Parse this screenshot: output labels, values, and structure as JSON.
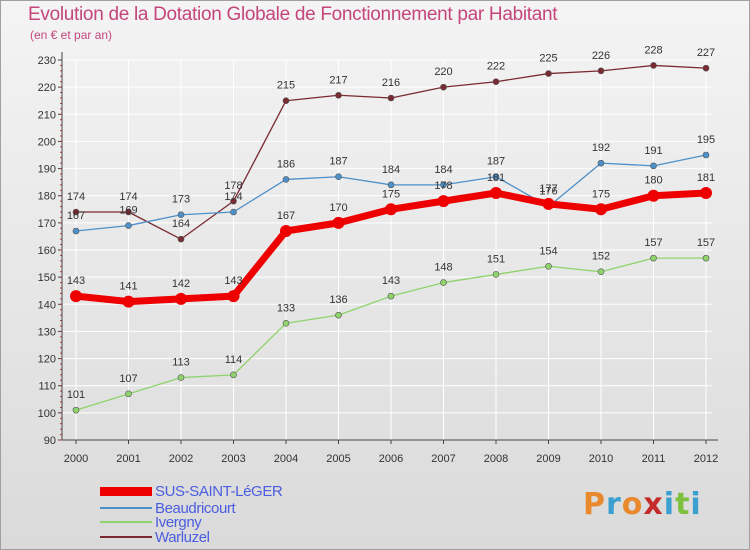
{
  "title": "Evolution de la Dotation Globale de Fonctionnement par Habitant",
  "subtitle": "(en € et par an)",
  "logo": {
    "text": "Proxiti",
    "colors": [
      "#e8892d",
      "#3aa0cf",
      "#e8892d",
      "#c42c2c",
      "#3aa0cf",
      "#7cc03c",
      "#3aa0cf"
    ]
  },
  "chart_data": {
    "type": "line",
    "x": [
      "2000",
      "2001",
      "2002",
      "2003",
      "2004",
      "2005",
      "2006",
      "2007",
      "2008",
      "2009",
      "2010",
      "2011",
      "2012"
    ],
    "ylim": [
      90,
      230
    ],
    "yticks": [
      90,
      100,
      110,
      120,
      130,
      140,
      150,
      160,
      170,
      180,
      190,
      200,
      210,
      220,
      230
    ],
    "grid": true,
    "legend_position": "bottom-left",
    "series": [
      {
        "name": "Warluzel",
        "color": "#7a2a32",
        "width": 1.3,
        "marker": 3,
        "values": [
          174,
          174,
          164,
          178,
          215,
          217,
          216,
          220,
          222,
          225,
          226,
          228,
          227
        ],
        "label_offsets": [
          -12,
          -12,
          -12,
          -12,
          -12,
          -12,
          -12,
          -12,
          -12,
          -12,
          -12,
          -12,
          -12
        ]
      },
      {
        "name": "Beaudricourt",
        "color": "#4e90c8",
        "width": 1.3,
        "marker": 3,
        "values": [
          167,
          169,
          173,
          174,
          186,
          187,
          184,
          184,
          187,
          176,
          192,
          191,
          195
        ],
        "label_offsets": [
          -12,
          -12,
          -12,
          -12,
          -12,
          -12,
          -12,
          -12,
          -12,
          -12,
          -12,
          -12,
          -12
        ]
      },
      {
        "name": "Ivergny",
        "color": "#8ed36b",
        "width": 1.3,
        "marker": 3,
        "values": [
          101,
          107,
          113,
          114,
          133,
          136,
          143,
          148,
          151,
          154,
          152,
          157,
          157
        ],
        "label_offsets": [
          -12,
          -12,
          -12,
          -12,
          -12,
          -12,
          -12,
          -12,
          -12,
          -12,
          -12,
          -12,
          -12
        ]
      },
      {
        "name": "SUS-SAINT-LéGER",
        "color": "#ee0000",
        "width": 7,
        "marker": 6,
        "values": [
          143,
          141,
          142,
          143,
          167,
          170,
          175,
          178,
          181,
          177,
          175,
          180,
          181
        ],
        "label_offsets": [
          -12,
          -12,
          -12,
          -12,
          -12,
          -12,
          -12,
          -12,
          -12,
          -12,
          -12,
          -12,
          -12
        ]
      }
    ],
    "legend_order": [
      "SUS-SAINT-LéGER",
      "Beaudricourt",
      "Ivergny",
      "Warluzel"
    ]
  }
}
